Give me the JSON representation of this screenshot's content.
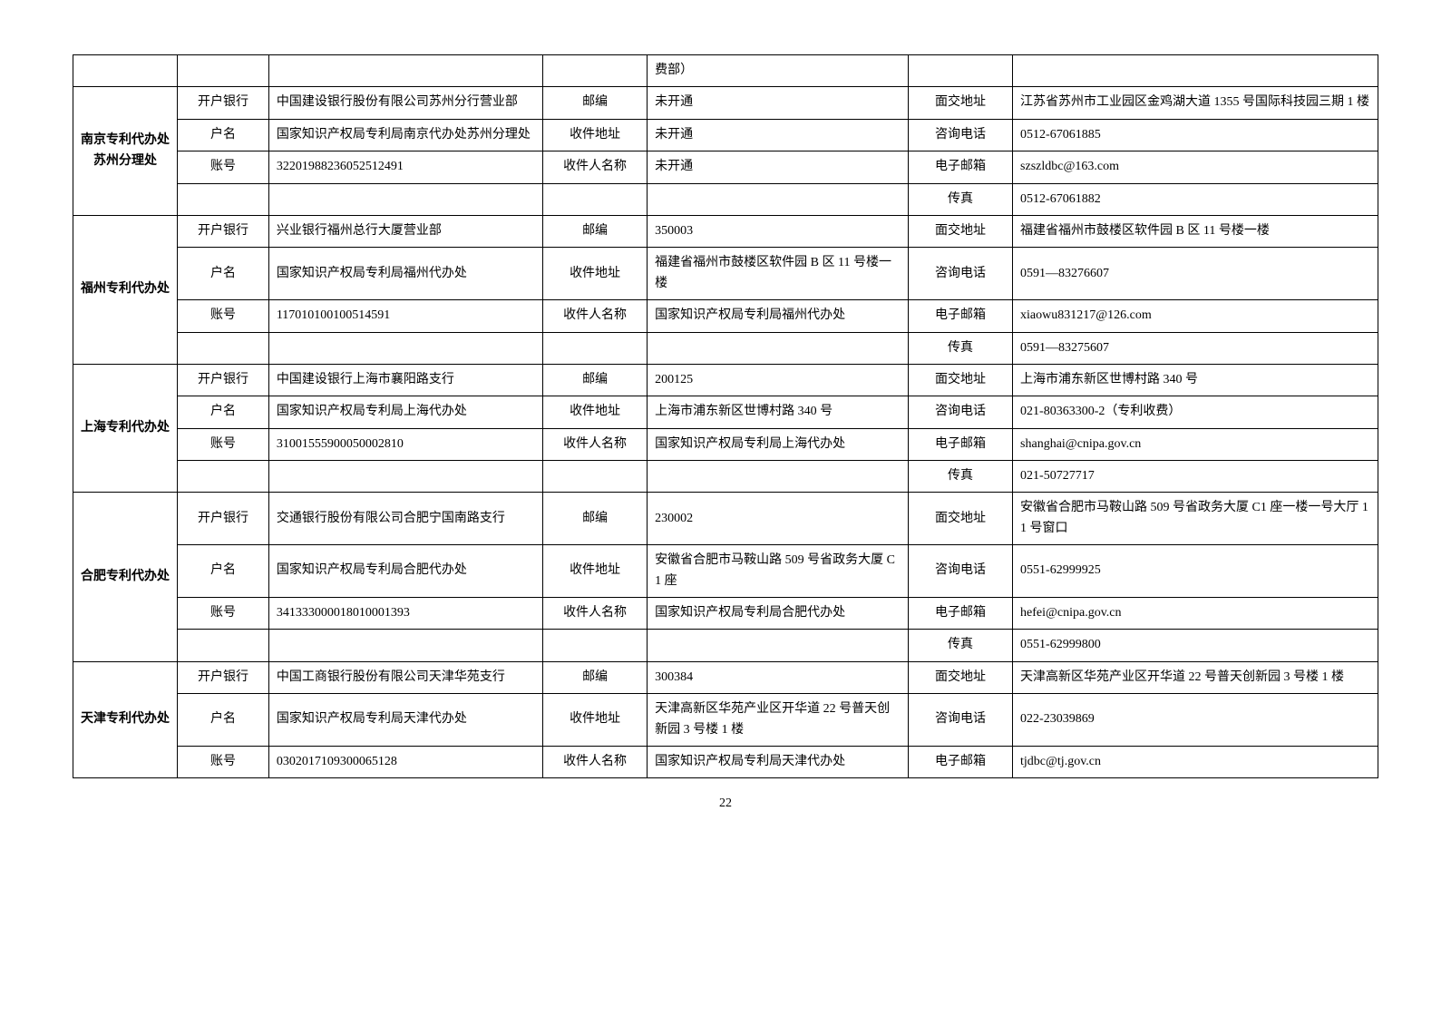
{
  "page_number": "22",
  "text_color": "#000000",
  "border_color": "#000000",
  "background_color": "#ffffff",
  "offices": [
    {
      "name": "",
      "rows": [
        {
          "l1": "",
          "v1": "",
          "l2": "",
          "v2": "费部）",
          "l3": "",
          "v3": ""
        }
      ]
    },
    {
      "name": "南京专利代办处苏州分理处",
      "rows": [
        {
          "l1": "开户银行",
          "v1": "中国建设银行股份有限公司苏州分行营业部",
          "l2": "邮编",
          "v2": "未开通",
          "l3": "面交地址",
          "v3": "江苏省苏州市工业园区金鸡湖大道 1355 号国际科技园三期 1 楼"
        },
        {
          "l1": "户名",
          "v1": "国家知识产权局专利局南京代办处苏州分理处",
          "l2": "收件地址",
          "v2": "未开通",
          "l3": "咨询电话",
          "v3": "0512-67061885"
        },
        {
          "l1": "账号",
          "v1": "32201988236052512491",
          "l2": "收件人名称",
          "v2": "未开通",
          "l3": "电子邮箱",
          "v3": "szszldbc@163.com"
        },
        {
          "l1": "",
          "v1": "",
          "l2": "",
          "v2": "",
          "l3": "传真",
          "v3": "0512-67061882"
        }
      ]
    },
    {
      "name": "福州专利代办处",
      "rows": [
        {
          "l1": "开户银行",
          "v1": "兴业银行福州总行大厦营业部",
          "l2": "邮编",
          "v2": "350003",
          "l3": "面交地址",
          "v3": "福建省福州市鼓楼区软件园 B 区 11 号楼一楼"
        },
        {
          "l1": "户名",
          "v1": "国家知识产权局专利局福州代办处",
          "l2": "收件地址",
          "v2": "福建省福州市鼓楼区软件园 B 区 11 号楼一楼",
          "l3": "咨询电话",
          "v3": "0591—83276607"
        },
        {
          "l1": "账号",
          "v1": "117010100100514591",
          "l2": "收件人名称",
          "v2": "国家知识产权局专利局福州代办处",
          "l3": "电子邮箱",
          "v3": "xiaowu831217@126.com"
        },
        {
          "l1": "",
          "v1": "",
          "l2": "",
          "v2": "",
          "l3": "传真",
          "v3": "0591—83275607"
        }
      ]
    },
    {
      "name": "上海专利代办处",
      "rows": [
        {
          "l1": "开户银行",
          "v1": "中国建设银行上海市襄阳路支行",
          "l2": "邮编",
          "v2": "200125",
          "l3": "面交地址",
          "v3": "上海市浦东新区世博村路 340 号"
        },
        {
          "l1": "户名",
          "v1": "国家知识产权局专利局上海代办处",
          "l2": "收件地址",
          "v2": "上海市浦东新区世博村路 340 号",
          "l3": "咨询电话",
          "v3": "021-80363300-2（专利收费）"
        },
        {
          "l1": "账号",
          "v1": "31001555900050002810",
          "l2": "收件人名称",
          "v2": "国家知识产权局专利局上海代办处",
          "l3": "电子邮箱",
          "v3": "shanghai@cnipa.gov.cn"
        },
        {
          "l1": "",
          "v1": "",
          "l2": "",
          "v2": "",
          "l3": "传真",
          "v3": "021-50727717"
        }
      ]
    },
    {
      "name": "合肥专利代办处",
      "rows": [
        {
          "l1": "开户银行",
          "v1": "交通银行股份有限公司合肥宁国南路支行",
          "l2": "邮编",
          "v2": "230002",
          "l3": "面交地址",
          "v3": "安徽省合肥市马鞍山路 509 号省政务大厦 C1 座一楼一号大厅 11 号窗口"
        },
        {
          "l1": "户名",
          "v1": "国家知识产权局专利局合肥代办处",
          "l2": "收件地址",
          "v2": "安徽省合肥市马鞍山路 509 号省政务大厦 C1 座",
          "l3": "咨询电话",
          "v3": "0551-62999925"
        },
        {
          "l1": "账号",
          "v1": "341333000018010001393",
          "l2": "收件人名称",
          "v2": "国家知识产权局专利局合肥代办处",
          "l3": "电子邮箱",
          "v3": "hefei@cnipa.gov.cn"
        },
        {
          "l1": "",
          "v1": "",
          "l2": "",
          "v2": "",
          "l3": "传真",
          "v3": "0551-62999800"
        }
      ]
    },
    {
      "name": "天津专利代办处",
      "rows": [
        {
          "l1": "开户银行",
          "v1": "中国工商银行股份有限公司天津华苑支行",
          "l2": "邮编",
          "v2": "300384",
          "l3": "面交地址",
          "v3": "天津高新区华苑产业区开华道 22 号普天创新园 3 号楼 1 楼"
        },
        {
          "l1": "户名",
          "v1": "国家知识产权局专利局天津代办处",
          "l2": "收件地址",
          "v2": "天津高新区华苑产业区开华道 22 号普天创新园 3 号楼 1 楼",
          "l3": "咨询电话",
          "v3": "022-23039869"
        },
        {
          "l1": "账号",
          "v1": "0302017109300065128",
          "l2": "收件人名称",
          "v2": "国家知识产权局专利局天津代办处",
          "l3": "电子邮箱",
          "v3": "tjdbc@tj.gov.cn"
        }
      ]
    }
  ]
}
